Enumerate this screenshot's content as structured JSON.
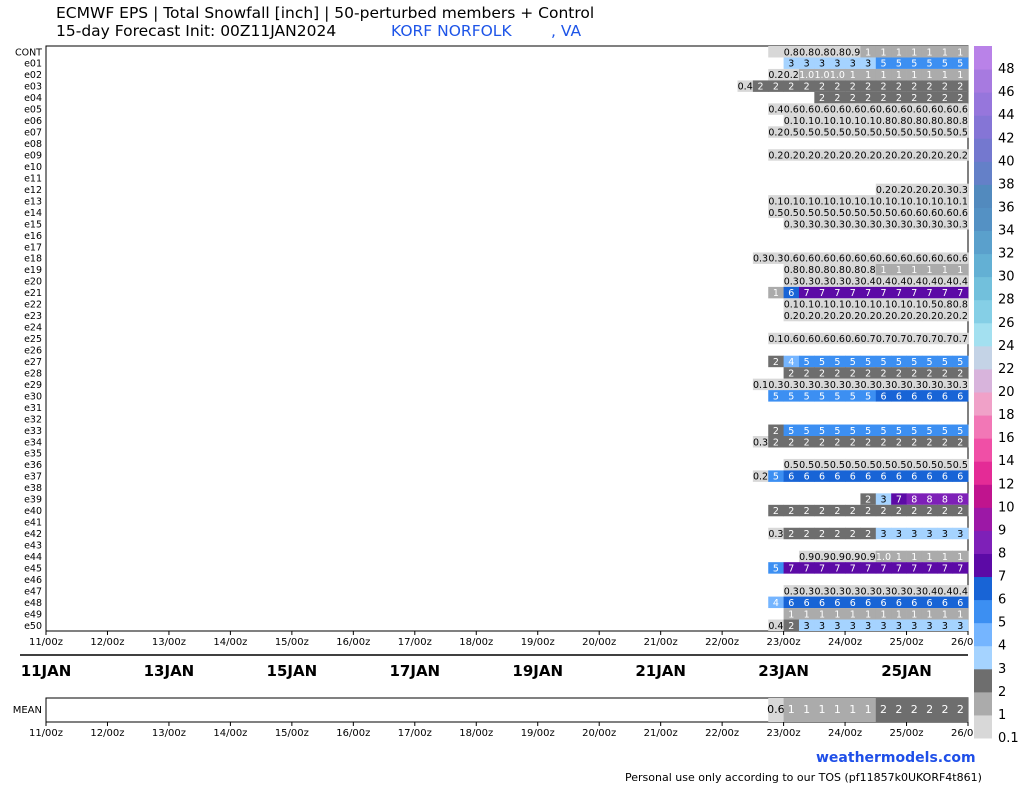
{
  "header": {
    "title_line1": "ECMWF EPS | Total Snowfall [inch] | 50-perturbed members + Control",
    "title_line2": "15-day Forecast Init: 00Z11JAN2024",
    "station": "KORF NORFOLK        , VA"
  },
  "footer": {
    "brand": "weathermodels.com",
    "tos": "Personal use only according to our TOS (pf11857k0UKORF4t861)"
  },
  "chart_data": {
    "type": "heatmap",
    "title": "ECMWF EPS | Total Snowfall [inch] | 50-perturbed members + Control",
    "time_ticks": [
      "11/00z",
      "12/00z",
      "13/00z",
      "14/00z",
      "15/00z",
      "16/00z",
      "17/00z",
      "18/00z",
      "19/00z",
      "20/00z",
      "21/00z",
      "22/00z",
      "23/00z",
      "24/00z",
      "25/00z",
      "26/00z"
    ],
    "date_labels": [
      [
        "11JAN",
        0
      ],
      [
        "13JAN",
        2
      ],
      [
        "15JAN",
        4
      ],
      [
        "17JAN",
        6
      ],
      [
        "19JAN",
        8
      ],
      [
        "21JAN",
        10
      ],
      [
        "23JAN",
        12
      ],
      [
        "25JAN",
        14
      ]
    ],
    "legend": {
      "title": "",
      "levels": [
        0.1,
        1,
        2,
        3,
        4,
        5,
        6,
        7,
        8,
        9,
        10,
        12,
        14,
        16,
        18,
        20,
        22,
        24,
        26,
        28,
        30,
        32,
        34,
        36,
        38,
        40,
        42,
        44,
        46,
        48
      ],
      "colors": [
        "#d8d8d8",
        "#ababab",
        "#6e6e6e",
        "#a5d3ff",
        "#75b5ff",
        "#3c8ff2",
        "#1864d6",
        "#5c0aa6",
        "#7e20b8",
        "#9c18a6",
        "#c0148e",
        "#e42b96",
        "#f04fa6",
        "#f277b6",
        "#f0a1c8",
        "#d8b4dc",
        "#c4d3e6",
        "#a3e0f0",
        "#85cfe6",
        "#72c0dc",
        "#63b0d4",
        "#5aa0cc",
        "#5491c4",
        "#528abe",
        "#6480c8",
        "#7478cf",
        "#8575d6",
        "#9676dc",
        "#a77ae0",
        "#b982e8"
      ]
    },
    "start_slot": {
      "CONT": 48
    },
    "rows": [
      {
        "name": "CONT",
        "start": 47,
        "values": [
          "",
          "0.8",
          "0.8",
          "0.8",
          "0.8",
          "0.9",
          "1",
          "1",
          "1",
          "1",
          "1",
          "1",
          "1",
          "1",
          "1",
          "1",
          "1",
          "1",
          "1"
        ]
      },
      {
        "name": "e01",
        "start": 48,
        "values": [
          "3",
          "3",
          "3",
          "3",
          "3",
          "3",
          "5",
          "5",
          "5",
          "5",
          "5",
          "5",
          "5",
          "5",
          "5",
          "5",
          "5",
          "5"
        ]
      },
      {
        "name": "e02",
        "start": 47,
        "values": [
          "0.2",
          "0.2",
          "1.0",
          "1.0",
          "1.0",
          "1",
          "1",
          "1",
          "1",
          "1",
          "1",
          "1",
          "1",
          "1",
          "1",
          "1",
          "1",
          "1",
          "1"
        ]
      },
      {
        "name": "e03",
        "start": 45,
        "values": [
          "0.4",
          "2",
          "2",
          "2",
          "2",
          "2",
          "2",
          "2",
          "2",
          "2",
          "2",
          "2",
          "2",
          "2",
          "2",
          "2",
          "2",
          "2",
          "2",
          "2",
          "2"
        ]
      },
      {
        "name": "e04",
        "start": 50,
        "values": [
          "2",
          "2",
          "2",
          "2",
          "2",
          "2",
          "2",
          "2",
          "2",
          "2",
          "2",
          "2",
          "2",
          "2",
          "2",
          "2",
          "2"
        ]
      },
      {
        "name": "e05",
        "start": 47,
        "values": [
          "0.4",
          "0.6",
          "0.6",
          "0.6",
          "0.6",
          "0.6",
          "0.6",
          "0.6",
          "0.6",
          "0.6",
          "0.6",
          "0.6",
          "0.6",
          "0.6",
          "0.6",
          "0.6",
          "0.6",
          "0.6",
          "0.6"
        ]
      },
      {
        "name": "e06",
        "start": 48,
        "values": [
          "0.1",
          "0.1",
          "0.1",
          "0.1",
          "0.1",
          "0.1",
          "0.8",
          "0.8",
          "0.8",
          "0.8",
          "0.8",
          "0.8",
          "0.8",
          "0.8",
          "0.8",
          "0.8",
          "0.8",
          "0.8"
        ]
      },
      {
        "name": "e07",
        "start": 47,
        "values": [
          "0.2",
          "0.5",
          "0.5",
          "0.5",
          "0.5",
          "0.5",
          "0.5",
          "0.5",
          "0.5",
          "0.5",
          "0.5",
          "0.5",
          "0.5",
          "0.5",
          "0.5",
          "0.5",
          "0.5",
          "0.5",
          "0.5"
        ]
      },
      {
        "name": "e08",
        "start": 0,
        "values": []
      },
      {
        "name": "e09",
        "start": 47,
        "values": [
          "0.2",
          "0.2",
          "0.2",
          "0.2",
          "0.2",
          "0.2",
          "0.2",
          "0.2",
          "0.2",
          "0.2",
          "0.2",
          "0.2",
          "0.2",
          "0.2",
          "0.2",
          "0.2",
          "0.2",
          "0.2",
          "0.2"
        ]
      },
      {
        "name": "e10",
        "start": 0,
        "values": []
      },
      {
        "name": "e11",
        "start": 0,
        "values": []
      },
      {
        "name": "e12",
        "start": 54,
        "values": [
          "0.2",
          "0.2",
          "0.2",
          "0.2",
          "0.3",
          "0.3",
          "0.3",
          "0.3",
          "0.3",
          "0.3",
          "0.3",
          "0.3"
        ]
      },
      {
        "name": "e13",
        "start": 47,
        "values": [
          "0.1",
          "0.1",
          "0.1",
          "0.1",
          "0.1",
          "0.1",
          "0.1",
          "0.1",
          "0.1",
          "0.1",
          "0.1",
          "0.1",
          "0.1",
          "0.1",
          "0.1",
          "0.1",
          "0.1",
          "0.1",
          "0.1"
        ]
      },
      {
        "name": "e14",
        "start": 47,
        "values": [
          "0.5",
          "0.5",
          "0.5",
          "0.5",
          "0.5",
          "0.5",
          "0.5",
          "0.5",
          "0.6",
          "0.6",
          "0.6",
          "0.6",
          "0.6",
          "0.6",
          "0.6",
          "0.6",
          "0.6",
          "0.6",
          "0.6"
        ]
      },
      {
        "name": "e15",
        "start": 48,
        "values": [
          "0.3",
          "0.3",
          "0.3",
          "0.3",
          "0.3",
          "0.3",
          "0.3",
          "0.3",
          "0.3",
          "0.3",
          "0.3",
          "0.3",
          "0.3",
          "0.3",
          "0.3",
          "0.3",
          "0.3",
          "0.3"
        ]
      },
      {
        "name": "e16",
        "start": 62,
        "values": [
          "0.2",
          "0.2",
          "2",
          "3"
        ]
      },
      {
        "name": "e17",
        "start": 0,
        "values": []
      },
      {
        "name": "e18",
        "start": 46,
        "values": [
          "0.3",
          "0.3",
          "0.6",
          "0.6",
          "0.6",
          "0.6",
          "0.6",
          "0.6",
          "0.6",
          "0.6",
          "0.6",
          "0.6",
          "0.6",
          "0.6",
          "0.6",
          "0.6",
          "0.6",
          "0.6",
          "0.6",
          "0.6"
        ]
      },
      {
        "name": "e19",
        "start": 48,
        "values": [
          "0.8",
          "0.8",
          "0.8",
          "0.8",
          "0.8",
          "0.8",
          "1",
          "1",
          "1",
          "1",
          "1",
          "1",
          "1",
          "1",
          "1",
          "1",
          "1",
          "1"
        ]
      },
      {
        "name": "e20",
        "start": 48,
        "values": [
          "0.3",
          "0.3",
          "0.3",
          "0.3",
          "0.3",
          "0.4",
          "0.4",
          "0.4",
          "0.4",
          "0.4",
          "0.4",
          "0.4",
          "0.4",
          "0.4",
          "0.4",
          "0.4",
          "0.4",
          "0.4"
        ]
      },
      {
        "name": "e21",
        "start": 47,
        "values": [
          "1",
          "6",
          "7",
          "7",
          "7",
          "7",
          "7",
          "7",
          "7",
          "7",
          "7",
          "7",
          "7",
          "7",
          "7",
          "7",
          "7",
          "7",
          "7"
        ]
      },
      {
        "name": "e22",
        "start": 48,
        "values": [
          "0.1",
          "0.1",
          "0.1",
          "0.1",
          "0.1",
          "0.1",
          "0.1",
          "0.1",
          "0.1",
          "0.5",
          "0.8",
          "0.8",
          "0.8",
          "0.8",
          "0.9",
          "0.9",
          "0.9",
          "0.9"
        ]
      },
      {
        "name": "e23",
        "start": 48,
        "values": [
          "0.2",
          "0.2",
          "0.2",
          "0.2",
          "0.2",
          "0.2",
          "0.2",
          "0.2",
          "0.2",
          "0.2",
          "0.2",
          "0.2",
          "0.2",
          "0.2",
          "0.2",
          "0.2",
          "0.2",
          "0.2"
        ]
      },
      {
        "name": "e24",
        "start": 0,
        "values": []
      },
      {
        "name": "e25",
        "start": 47,
        "values": [
          "0.1",
          "0.6",
          "0.6",
          "0.6",
          "0.6",
          "0.6",
          "0.7",
          "0.7",
          "0.7",
          "0.7",
          "0.7",
          "0.7",
          "0.7",
          "0.7",
          "0.7",
          "0.7",
          "0.7",
          "0.7",
          "0.7"
        ]
      },
      {
        "name": "e26",
        "start": 0,
        "values": []
      },
      {
        "name": "e27",
        "start": 47,
        "values": [
          "2",
          "4",
          "5",
          "5",
          "5",
          "5",
          "5",
          "5",
          "5",
          "5",
          "5",
          "5",
          "5",
          "5",
          "5",
          "5",
          "5",
          "5",
          "5"
        ]
      },
      {
        "name": "e28",
        "start": 48,
        "values": [
          "2",
          "2",
          "2",
          "2",
          "2",
          "2",
          "2",
          "2",
          "2",
          "2",
          "2",
          "2",
          "2",
          "2",
          "2",
          "2",
          "2",
          "2"
        ]
      },
      {
        "name": "e29",
        "start": 46,
        "values": [
          "0.1",
          "0.3",
          "0.3",
          "0.3",
          "0.3",
          "0.3",
          "0.3",
          "0.3",
          "0.3",
          "0.3",
          "0.3",
          "0.3",
          "0.3",
          "0.3",
          "0.3",
          "0.3",
          "0.3",
          "0.3",
          "0.3",
          "0.3"
        ]
      },
      {
        "name": "e30",
        "start": 47,
        "values": [
          "5",
          "5",
          "5",
          "5",
          "5",
          "5",
          "5",
          "6",
          "6",
          "6",
          "6",
          "6",
          "6",
          "6",
          "6",
          "6",
          "6",
          "6",
          "6"
        ]
      },
      {
        "name": "e31",
        "start": 0,
        "values": []
      },
      {
        "name": "e32",
        "start": 0,
        "values": []
      },
      {
        "name": "e33",
        "start": 47,
        "values": [
          "2",
          "5",
          "5",
          "5",
          "5",
          "5",
          "5",
          "5",
          "5",
          "5",
          "5",
          "5",
          "5",
          "5",
          "5",
          "5",
          "5",
          "5",
          "5"
        ]
      },
      {
        "name": "e34",
        "start": 46,
        "values": [
          "0.3",
          "2",
          "2",
          "2",
          "2",
          "2",
          "2",
          "2",
          "2",
          "2",
          "2",
          "2",
          "2",
          "2",
          "2",
          "2",
          "2",
          "3",
          "3",
          "3"
        ]
      },
      {
        "name": "e35",
        "start": 0,
        "values": []
      },
      {
        "name": "e36",
        "start": 48,
        "values": [
          "0.5",
          "0.5",
          "0.5",
          "0.5",
          "0.5",
          "0.5",
          "0.5",
          "0.5",
          "0.5",
          "0.5",
          "0.5",
          "0.5",
          "0.5",
          "0.5",
          "0.5",
          "0.5",
          "0.5",
          "0.5"
        ]
      },
      {
        "name": "e37",
        "start": 46,
        "values": [
          "0.2",
          "5",
          "6",
          "6",
          "6",
          "6",
          "6",
          "6",
          "6",
          "6",
          "6",
          "6",
          "6",
          "6",
          "6",
          "6",
          "6",
          "6",
          "6",
          "6"
        ]
      },
      {
        "name": "e38",
        "start": 0,
        "values": []
      },
      {
        "name": "e39",
        "start": 53,
        "values": [
          "2",
          "3",
          "7",
          "8",
          "8",
          "8",
          "8",
          "8",
          "8",
          "8",
          "8",
          "8",
          "8"
        ]
      },
      {
        "name": "e40",
        "start": 47,
        "values": [
          "2",
          "2",
          "2",
          "2",
          "2",
          "2",
          "2",
          "2",
          "2",
          "2",
          "2",
          "2",
          "2",
          "2",
          "2",
          "2",
          "2",
          "2",
          "2"
        ]
      },
      {
        "name": "e41",
        "start": 0,
        "values": []
      },
      {
        "name": "e42",
        "start": 47,
        "values": [
          "0.3",
          "2",
          "2",
          "2",
          "2",
          "2",
          "2",
          "3",
          "3",
          "3",
          "3",
          "3",
          "3",
          "3",
          "3",
          "3",
          "3",
          "3",
          "3"
        ]
      },
      {
        "name": "e43",
        "start": 0,
        "values": []
      },
      {
        "name": "e44",
        "start": 49,
        "values": [
          "0.9",
          "0.9",
          "0.9",
          "0.9",
          "0.9",
          "1.0",
          "1",
          "1",
          "1",
          "1",
          "1",
          "1",
          "1",
          "1",
          "1",
          "1",
          "1"
        ]
      },
      {
        "name": "e45",
        "start": 47,
        "values": [
          "5",
          "7",
          "7",
          "7",
          "7",
          "7",
          "7",
          "7",
          "7",
          "7",
          "7",
          "7",
          "7",
          "7",
          "7",
          "7",
          "7",
          "7",
          "7"
        ]
      },
      {
        "name": "e46",
        "start": 0,
        "values": []
      },
      {
        "name": "e47",
        "start": 48,
        "values": [
          "0.3",
          "0.3",
          "0.3",
          "0.3",
          "0.3",
          "0.3",
          "0.3",
          "0.3",
          "0.3",
          "0.4",
          "0.4",
          "0.4",
          "0.4",
          "0.4",
          "0.4",
          "0.4",
          "0.4",
          "0.4"
        ]
      },
      {
        "name": "e48",
        "start": 47,
        "values": [
          "4",
          "6",
          "6",
          "6",
          "6",
          "6",
          "6",
          "6",
          "6",
          "6",
          "6",
          "6",
          "6",
          "6",
          "6",
          "6",
          "6",
          "6",
          "6"
        ]
      },
      {
        "name": "e49",
        "start": 48,
        "values": [
          "1",
          "1",
          "1",
          "1",
          "1",
          "1",
          "1",
          "1",
          "1",
          "1",
          "1",
          "1",
          "1",
          "1",
          "1",
          "1",
          "1",
          "1"
        ]
      },
      {
        "name": "e50",
        "start": 47,
        "values": [
          "0.4",
          "2",
          "3",
          "3",
          "3",
          "3",
          "3",
          "3",
          "3",
          "3",
          "3",
          "3",
          "3",
          "3",
          "3",
          "3",
          "3",
          "3",
          "3"
        ]
      }
    ],
    "mean": {
      "name": "MEAN",
      "start": 47,
      "values": [
        "0.6",
        "1",
        "1",
        "1",
        "1",
        "1",
        "1",
        "2",
        "2",
        "2",
        "2",
        "2",
        "2",
        "2",
        "2",
        "2",
        "2",
        "2",
        "2"
      ]
    }
  }
}
